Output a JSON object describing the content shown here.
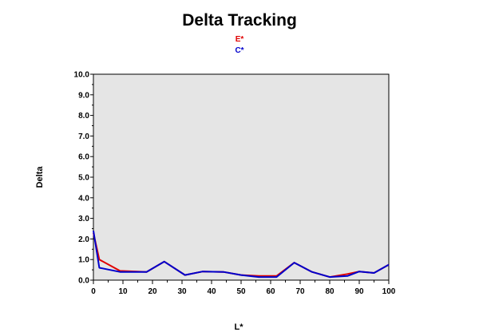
{
  "chart_data": {
    "type": "line",
    "title": "Delta Tracking",
    "xlabel": "L*",
    "ylabel": "Delta",
    "xlim": [
      0,
      100
    ],
    "ylim": [
      0,
      10
    ],
    "x_ticks": [
      "0",
      "10",
      "20",
      "30",
      "40",
      "50",
      "60",
      "70",
      "80",
      "90",
      "100"
    ],
    "y_ticks": [
      "0.0",
      "1.0",
      "2.0",
      "3.0",
      "4.0",
      "5.0",
      "6.0",
      "7.0",
      "8.0",
      "9.0",
      "10.0"
    ],
    "plot_background": "#e5e5e5",
    "grid": false,
    "legend_placement": "top-center",
    "series": [
      {
        "name": "E*",
        "color": "#e00000",
        "x": [
          0,
          2,
          9,
          18,
          24,
          31,
          37,
          44,
          50,
          56,
          62,
          68,
          74,
          80,
          86,
          90,
          95,
          100
        ],
        "y": [
          2.3,
          1.0,
          0.45,
          0.4,
          0.9,
          0.25,
          0.42,
          0.4,
          0.25,
          0.2,
          0.2,
          0.85,
          0.4,
          0.15,
          0.3,
          0.42,
          0.35,
          0.75
        ]
      },
      {
        "name": "C*",
        "color": "#0000cc",
        "x": [
          0,
          2,
          9,
          18,
          24,
          31,
          37,
          44,
          50,
          56,
          62,
          68,
          74,
          80,
          86,
          90,
          95,
          100
        ],
        "y": [
          2.4,
          0.6,
          0.4,
          0.4,
          0.9,
          0.25,
          0.42,
          0.4,
          0.25,
          0.15,
          0.15,
          0.85,
          0.4,
          0.15,
          0.2,
          0.42,
          0.35,
          0.75
        ]
      }
    ]
  }
}
